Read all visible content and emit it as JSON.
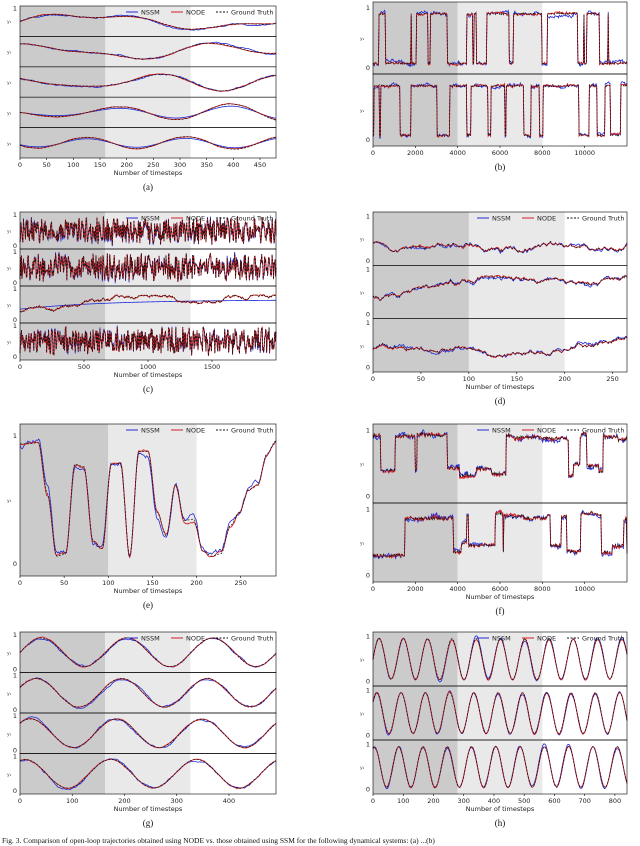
{
  "legend": {
    "nssm": "NSSM",
    "node": "NODE",
    "truth": "Ground Truth"
  },
  "colors": {
    "nssm": "#1f2bd6",
    "node": "#d21f1f",
    "truth": "#111111",
    "train_bg": "#cbcbcb",
    "dev_bg": "#e9e9e9"
  },
  "figure_caption": "Fig. 3.   Comparison of open-loop trajectories obtained using NODE vs. those obtained using SSM for the following dynamical systems: (a) ...(b)",
  "chart_data": [
    {
      "id": "a",
      "type": "line",
      "caption": "(a)",
      "xlabel": "Number of timesteps",
      "xlim": [
        0,
        480
      ],
      "xticks": [
        0,
        50,
        100,
        150,
        200,
        250,
        300,
        350,
        400,
        450
      ],
      "train_end": 160,
      "dev_end": 320,
      "n_panels": 5,
      "legend": true,
      "panel_yticks": [
        [
          "1"
        ],
        [],
        [],
        [],
        []
      ],
      "signal": "smooth"
    },
    {
      "id": "b",
      "type": "line",
      "caption": "(b)",
      "xlabel": "",
      "xlim": [
        0,
        12000
      ],
      "xticks": [
        0,
        2000,
        4000,
        6000,
        8000,
        10000
      ],
      "train_end": 4000,
      "dev_end": 8000,
      "n_panels": 2,
      "legend": false,
      "panel_yticks": [
        [
          "1",
          "0"
        ],
        [
          "0"
        ]
      ],
      "signal": "switch"
    },
    {
      "id": "c",
      "type": "line",
      "caption": "(c)",
      "xlabel": "Number of timesteps",
      "xlim": [
        0,
        2000
      ],
      "xticks": [
        0,
        500,
        1000,
        1500
      ],
      "train_end": 666,
      "dev_end": 1333,
      "n_panels": 4,
      "legend": true,
      "panel_yticks": [
        [
          "1",
          "0"
        ],
        [
          "1",
          "0"
        ],
        [
          "1",
          "0"
        ],
        [
          "1",
          "0"
        ]
      ],
      "signal": "noisy"
    },
    {
      "id": "d",
      "type": "line",
      "caption": "(d)",
      "xlabel": "Number of timesteps",
      "xlim": [
        0,
        265
      ],
      "xticks": [
        0,
        50,
        100,
        150,
        200,
        250
      ],
      "train_end": 100,
      "dev_end": 200,
      "n_panels": 3,
      "legend": true,
      "panel_yticks": [
        [
          "1",
          "0"
        ],
        [
          "1",
          "0"
        ],
        [
          "1",
          "0"
        ]
      ],
      "signal": "walk"
    },
    {
      "id": "e",
      "type": "line",
      "caption": "(e)",
      "xlabel": "Number of timesteps",
      "xlim": [
        0,
        290
      ],
      "xticks": [
        0,
        50,
        100,
        150,
        200,
        250
      ],
      "train_end": 100,
      "dev_end": 200,
      "n_panels": 1,
      "legend": true,
      "panel_yticks": [
        [
          "1",
          "0"
        ]
      ],
      "signal": "pulse"
    },
    {
      "id": "f",
      "type": "line",
      "caption": "(f)",
      "xlabel": "Number of timesteps",
      "xlim": [
        0,
        12000
      ],
      "xticks": [
        0,
        2000,
        4000,
        6000,
        8000,
        10000
      ],
      "train_end": 4000,
      "dev_end": 8000,
      "n_panels": 2,
      "legend": true,
      "panel_yticks": [
        [
          "1",
          "0"
        ],
        [
          "1",
          "0"
        ]
      ],
      "signal": "spiky"
    },
    {
      "id": "g",
      "type": "line",
      "caption": "(g)",
      "xlabel": "Number of timesteps",
      "xlim": [
        0,
        490
      ],
      "xticks": [
        0,
        100,
        200,
        300,
        400
      ],
      "train_end": 163,
      "dev_end": 326,
      "n_panels": 4,
      "legend": true,
      "panel_yticks": [
        [
          "1",
          "0"
        ],
        [
          "1",
          "0"
        ],
        [
          "1",
          "0"
        ],
        [
          "1",
          "0"
        ]
      ],
      "signal": "slowsine"
    },
    {
      "id": "h",
      "type": "line",
      "caption": "(h)",
      "xlabel": "Number of timesteps",
      "xlim": [
        0,
        840
      ],
      "xticks": [
        0,
        100,
        200,
        300,
        400,
        500,
        600,
        700,
        800
      ],
      "train_end": 280,
      "dev_end": 560,
      "n_panels": 3,
      "legend": true,
      "panel_yticks": [
        [
          "1",
          "0"
        ],
        [
          "1",
          "0"
        ],
        [
          "1",
          "0"
        ]
      ],
      "signal": "fastsine"
    }
  ]
}
